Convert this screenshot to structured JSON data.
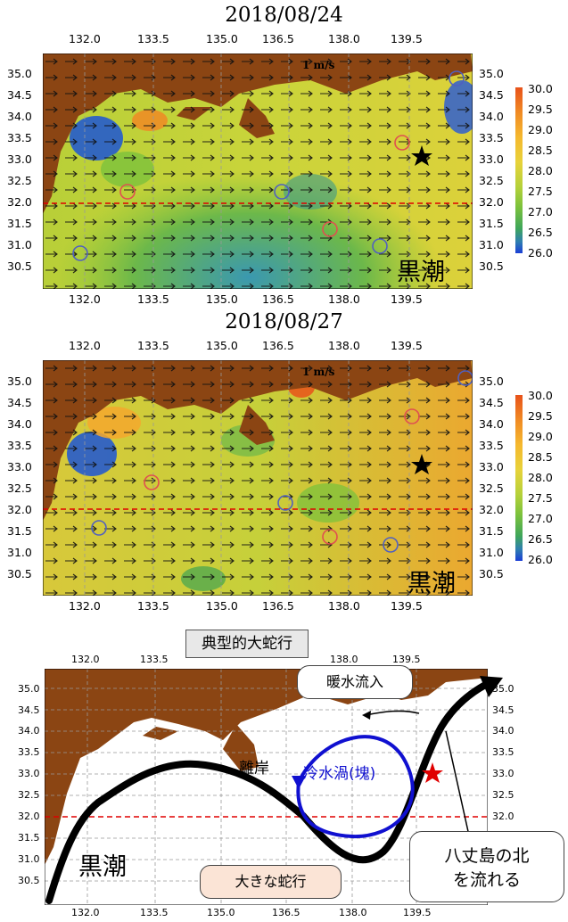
{
  "panel1": {
    "title": "2018/08/24",
    "kuroshio_label": "黒潮",
    "scale_label": "1 m/s"
  },
  "panel2": {
    "title": "2018/08/27",
    "kuroshio_label": "黒潮",
    "scale_label": "1 m/s"
  },
  "lon_ticks": [
    "132.0",
    "133.5",
    "135.0",
    "136.5",
    "138.0",
    "139.5"
  ],
  "lat_ticks": [
    "35.0",
    "34.5",
    "34.0",
    "33.5",
    "33.0",
    "32.5",
    "32.0",
    "31.5",
    "31.0",
    "30.5"
  ],
  "colorbar": {
    "labels": [
      "30.0",
      "29.5",
      "29.0",
      "28.5",
      "28.0",
      "27.5",
      "27.0",
      "26.5",
      "26.0"
    ],
    "colors": [
      "#e8521a",
      "#f08a24",
      "#f5b82e",
      "#e8d23a",
      "#b5d13a",
      "#7cc23c",
      "#3fa65a",
      "#2f7fb0",
      "#1b3fd6"
    ]
  },
  "panel3": {
    "title": "典型的大蛇行",
    "kuroshio_label": "黒潮",
    "warm_inflow": "暖水流入",
    "cold_eddy": "冷水渦(塊)",
    "offshore": "離岸",
    "big_meander": "大きな蛇行",
    "hachijo_line1": "八丈島の北",
    "hachijo_line2": "を流れる"
  },
  "colors": {
    "land": "#8b4513",
    "eddy_blue": "#1010d0",
    "red_dash": "#e00000"
  }
}
